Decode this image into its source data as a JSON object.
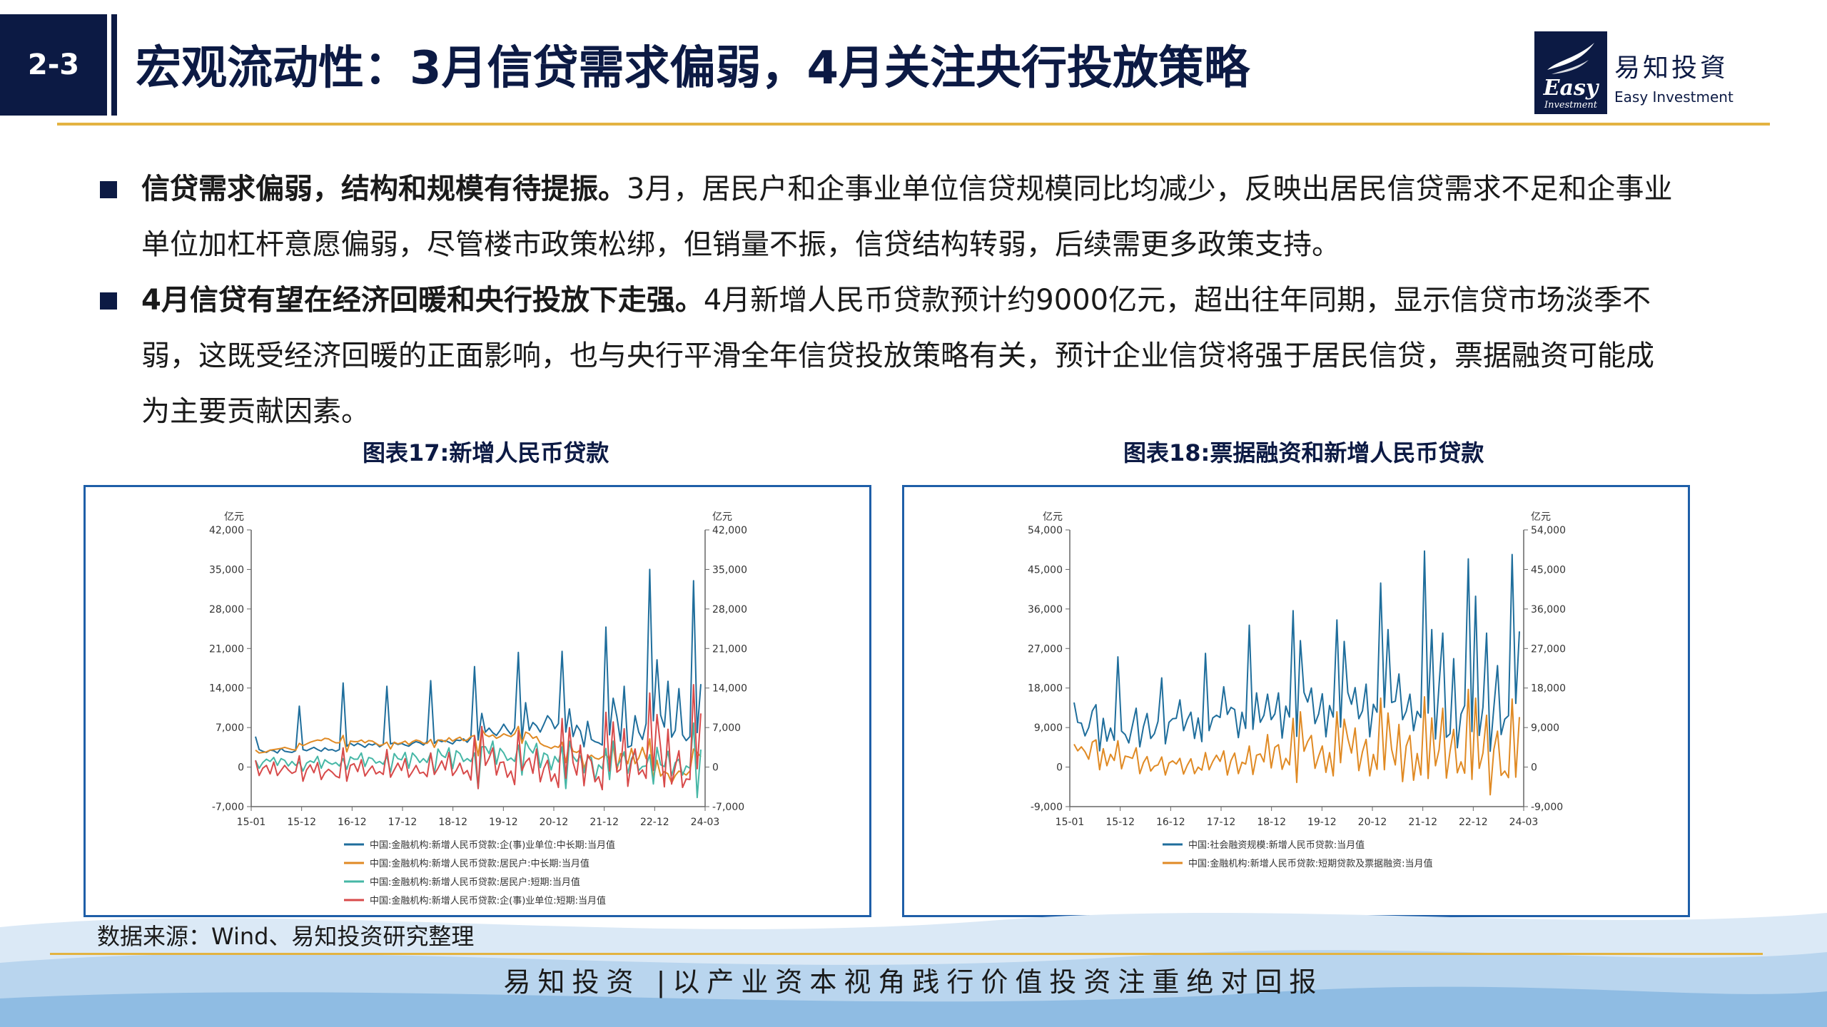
{
  "header": {
    "section": "2-3",
    "title": "宏观流动性：3月信贷需求偏弱，4月关注央行投放策略"
  },
  "logo": {
    "mark_text": "Easy",
    "mark_sub": "Investment",
    "name_cn": "易知投資",
    "name_en": "Easy Investment"
  },
  "bullets": [
    {
      "bold": "信贷需求偏弱，结构和规模有待提振。",
      "text": "3月，居民户和企事业单位信贷规模同比均减少，反映出居民信贷需求不足和企事业单位加杠杆意愿偏弱，尽管楼市政策松绑，但销量不振，信贷结构转弱，后续需更多政策支持。"
    },
    {
      "bold": "4月信贷有望在经济回暖和央行投放下走强。",
      "text": "4月新增人民币贷款预计约9000亿元，超出往年同期，显示信贷市场淡季不弱，这既受经济回暖的正面影响，也与央行平滑全年信贷投放策略有关，预计企业信贷将强于居民信贷，票据融资可能成为主要贡献因素。"
    }
  ],
  "source": "数据来源：Wind、易知投资研究整理",
  "slogan": "易知投资 |以产业资本视角践行价值投资注重绝对回报",
  "colors": {
    "navy": "#0c1a44",
    "gold": "#e3b341",
    "frame": "#1f5fa8"
  },
  "chart_data": [
    {
      "type": "line",
      "title": "图表17:新增人民币贷款",
      "ylabel_left": "亿元",
      "ylabel_right": "亿元",
      "ylim": [
        -7000,
        42000
      ],
      "yticks": [
        "-7,000",
        "0",
        "7,000",
        "14,000",
        "21,000",
        "28,000",
        "35,000",
        "42,000"
      ],
      "xticks": [
        "15-01",
        "15-12",
        "16-12",
        "17-12",
        "18-12",
        "19-12",
        "20-12",
        "21-12",
        "22-12",
        "24-03"
      ],
      "grid": false,
      "legend_position": "bottom",
      "series": [
        {
          "name": "中国:金融机构:新增人民币贷款:企(事)业单位:中长期:当月值",
          "color": "#1f6e9c",
          "values": [
            5400,
            3100,
            2800,
            2600,
            3000,
            2900,
            2500,
            3300,
            2800,
            2700,
            2600,
            2900,
            10800,
            3100,
            2900,
            3200,
            3500,
            3100,
            2800,
            3400,
            3000,
            3100,
            2800,
            3100,
            14900,
            3700,
            4200,
            3800,
            4200,
            3900,
            3500,
            4100,
            3900,
            4200,
            3600,
            4000,
            14300,
            4100,
            4300,
            4000,
            4200,
            3900,
            3700,
            4200,
            4500,
            4300,
            3900,
            4500,
            15300,
            4200,
            4800,
            4500,
            4700,
            4400,
            4100,
            4800,
            4700,
            5000,
            4400,
            5200,
            17800,
            4800,
            9500,
            6200,
            6900,
            6100,
            5600,
            6500,
            7600,
            6600,
            5800,
            6900,
            20300,
            4900,
            11400,
            6500,
            7900,
            7300,
            6200,
            7600,
            9100,
            8300,
            6800,
            7700,
            20500,
            6200,
            10300,
            5400,
            7400,
            6400,
            3600,
            8100,
            4900,
            4500,
            4300,
            3900,
            24800,
            5700,
            12200,
            8900,
            4600,
            14300,
            3500,
            3800,
            9100,
            6200,
            4900,
            7700,
            35000,
            8200,
            19000,
            9200,
            7100,
            15200,
            5300,
            6500,
            13900,
            5700,
            4700,
            5400,
            33000,
            6100,
            14700
          ]
        },
        {
          "name": "中国:金融机构:新增人民币贷款:居民户:中长期:当月值",
          "color": "#e08a24",
          "values": [
            3000,
            2500,
            2600,
            2700,
            3000,
            3100,
            3200,
            3300,
            3500,
            3300,
            3100,
            3000,
            4200,
            3800,
            4100,
            4400,
            4600,
            4800,
            4700,
            5100,
            5000,
            4600,
            4300,
            4300,
            5600,
            2700,
            4600,
            4500,
            4500,
            4800,
            4300,
            4700,
            4600,
            4200,
            3800,
            4000,
            4400,
            3200,
            4400,
            4100,
            4300,
            4600,
            4000,
            4500,
            4800,
            4600,
            4200,
            4200,
            4900,
            3500,
            4800,
            4800,
            4500,
            5200,
            4600,
            5000,
            5300,
            4700,
            4800,
            5400,
            5600,
            2000,
            6700,
            5700,
            5400,
            5700,
            5100,
            5400,
            5900,
            5600,
            5400,
            5900,
            7200,
            4200,
            6200,
            5900,
            5100,
            5400,
            4200,
            3800,
            3600,
            3300,
            3700,
            3500,
            4400,
            800,
            4600,
            2800,
            2600,
            3000,
            -200,
            1600,
            2100,
            1600,
            1400,
            1800,
            2200,
            1400,
            3800,
            -600,
            2400,
            2100,
            600,
            3300,
            600,
            1600,
            3500,
            1500,
            5000,
            -2000,
            1200,
            -1600,
            -800,
            -1200,
            -2800,
            -1500,
            -700,
            -1000,
            -1400,
            -700,
            3200,
            2600,
            1800
          ]
        },
        {
          "name": "中国:金融机构:新增人民币贷款:居民户:短期:当月值",
          "color": "#46b7a6",
          "values": [
            1200,
            -200,
            800,
            1400,
            1000,
            1700,
            300,
            1500,
            1200,
            200,
            1000,
            300,
            900,
            -700,
            700,
            1100,
            800,
            1900,
            -200,
            1300,
            800,
            500,
            800,
            200,
            1500,
            -400,
            1800,
            1400,
            1400,
            2500,
            100,
            1700,
            1500,
            700,
            1000,
            500,
            1900,
            -900,
            2400,
            1500,
            1300,
            2600,
            -200,
            2500,
            1800,
            800,
            1500,
            800,
            2500,
            -1200,
            3200,
            2100,
            1700,
            3400,
            -300,
            2900,
            2400,
            1000,
            1500,
            1000,
            2500,
            -3800,
            3600,
            3600,
            2400,
            4600,
            500,
            3300,
            2500,
            1200,
            1600,
            1000,
            3900,
            -1400,
            4600,
            3300,
            2500,
            4200,
            -100,
            2500,
            2100,
            -500,
            1900,
            900,
            3600,
            -3800,
            4500,
            1900,
            1000,
            2000,
            -1000,
            1700,
            1700,
            -2300,
            400,
            -300,
            3300,
            -2200,
            4600,
            100,
            1200,
            2700,
            -1100,
            1500,
            2600,
            -600,
            100,
            200,
            2200,
            -3000,
            3500,
            400,
            100,
            2800,
            -1500,
            800,
            1400,
            -1400,
            200,
            -200,
            7800,
            -5400,
            3100
          ]
        },
        {
          "name": "中国:金融机构:新增人民币贷款:企(事)业单位:短期:当月值",
          "color": "#d84a4a",
          "values": [
            1200,
            -1500,
            -200,
            300,
            -1200,
            900,
            -1500,
            -600,
            300,
            -500,
            -1100,
            -800,
            2000,
            -2500,
            -500,
            400,
            -1000,
            800,
            -2200,
            -1000,
            -400,
            -900,
            -1600,
            -1900,
            3400,
            -2500,
            300,
            600,
            -800,
            1300,
            -1600,
            -600,
            200,
            -1200,
            -800,
            -1300,
            3100,
            -1800,
            -500,
            700,
            -600,
            1500,
            -1800,
            -800,
            300,
            -1100,
            -900,
            -1700,
            2500,
            -1300,
            -200,
            1100,
            -500,
            2600,
            -1500,
            -600,
            700,
            -1200,
            -600,
            -2300,
            5500,
            -3800,
            7200,
            300,
            1600,
            3400,
            -1400,
            800,
            900,
            -1800,
            -700,
            -3100,
            6500,
            -600,
            900,
            1600,
            -1100,
            3200,
            -2600,
            -200,
            1200,
            -2500,
            -1200,
            -3600,
            8600,
            -2000,
            7000,
            800,
            -1400,
            3900,
            -3300,
            2200,
            1000,
            -2600,
            -1700,
            -4000,
            9700,
            -700,
            8000,
            -900,
            -400,
            6800,
            -3400,
            1000,
            3200,
            -1300,
            -500,
            -2000,
            13100,
            -600,
            9300,
            3400,
            -3500,
            6700,
            -3000,
            100,
            2900,
            -3600,
            -2100,
            -2200,
            14600,
            -300,
            9500
          ]
        }
      ]
    },
    {
      "type": "line",
      "title": "图表18:票据融资和新增人民币贷款",
      "ylabel_left": "亿元",
      "ylabel_right": "亿元",
      "ylim": [
        -9000,
        54000
      ],
      "yticks": [
        "-9,000",
        "0",
        "9,000",
        "18,000",
        "27,000",
        "36,000",
        "45,000",
        "54,000"
      ],
      "xticks": [
        "15-01",
        "15-12",
        "16-12",
        "17-12",
        "18-12",
        "19-12",
        "20-12",
        "21-12",
        "22-12",
        "24-03"
      ],
      "grid": false,
      "legend_position": "bottom",
      "series": [
        {
          "name": "中国:社会融资规模:新增人民币贷款:当月值",
          "color": "#1f6e9c",
          "values": [
            14700,
            10200,
            10000,
            7100,
            9000,
            12800,
            14200,
            3700,
            11100,
            5900,
            8900,
            6100,
            25100,
            8200,
            7400,
            5500,
            9500,
            13400,
            4600,
            9200,
            12200,
            6500,
            7600,
            10400,
            20300,
            5300,
            10200,
            11000,
            11100,
            15300,
            8300,
            10800,
            12500,
            6500,
            11200,
            5800,
            25900,
            8300,
            11200,
            11800,
            11300,
            18300,
            12000,
            13600,
            13100,
            6700,
            12500,
            8800,
            32300,
            8600,
            16900,
            10200,
            11800,
            16600,
            10800,
            12100,
            16900,
            6600,
            13900,
            11400,
            35600,
            7000,
            28800,
            17000,
            14800,
            18000,
            9900,
            12100,
            16700,
            6900,
            14000,
            11400,
            33500,
            9100,
            28600,
            17000,
            14300,
            18100,
            11000,
            12800,
            18900,
            6900,
            14300,
            12500,
            41900,
            13600,
            31300,
            14700,
            15000,
            21200,
            10800,
            12700,
            16600,
            8300,
            12700,
            11300,
            49200,
            12300,
            31300,
            6400,
            18900,
            30500,
            6800,
            7600,
            24700,
            4400,
            12100,
            14000,
            47400,
            8100,
            38900,
            7200,
            13600,
            30500,
            3600,
            13600,
            23100,
            7400,
            10900,
            11700,
            48400,
            14500,
            30900
          ]
        },
        {
          "name": "中国:金融机构:新增人民币贷款:短期贷款及票据融资:当月值",
          "color": "#e08a24",
          "values": [
            5200,
            3700,
            4600,
            3500,
            1800,
            5700,
            6200,
            -600,
            4200,
            300,
            2900,
            1500,
            6000,
            -400,
            2500,
            2300,
            2000,
            4400,
            -1500,
            1000,
            2400,
            -900,
            200,
            500,
            2300,
            -1800,
            900,
            1400,
            700,
            2000,
            -1600,
            400,
            1900,
            -1500,
            0,
            -700,
            3300,
            -600,
            1300,
            2700,
            1300,
            3700,
            -1800,
            1500,
            3200,
            -1500,
            1100,
            700,
            4800,
            -1700,
            2700,
            3000,
            1200,
            7400,
            -200,
            4500,
            5100,
            -500,
            2000,
            500,
            11100,
            -3500,
            12600,
            3600,
            5800,
            7200,
            -300,
            2500,
            4800,
            -1200,
            3300,
            -2000,
            12600,
            1000,
            10900,
            6500,
            3200,
            8900,
            -800,
            3500,
            6300,
            -2000,
            2900,
            -500,
            15700,
            -600,
            12300,
            4000,
            500,
            9700,
            -3300,
            4800,
            7200,
            -3000,
            3100,
            -1800,
            16000,
            -2600,
            11200,
            300,
            4000,
            13400,
            -2500,
            3600,
            8600,
            -1300,
            1200,
            -1400,
            17700,
            -2800,
            15700,
            -300,
            3200,
            11800,
            -6300,
            4000,
            8200,
            -1900,
            -900,
            -2400,
            15500,
            -2300,
            11400
          ]
        }
      ]
    }
  ]
}
